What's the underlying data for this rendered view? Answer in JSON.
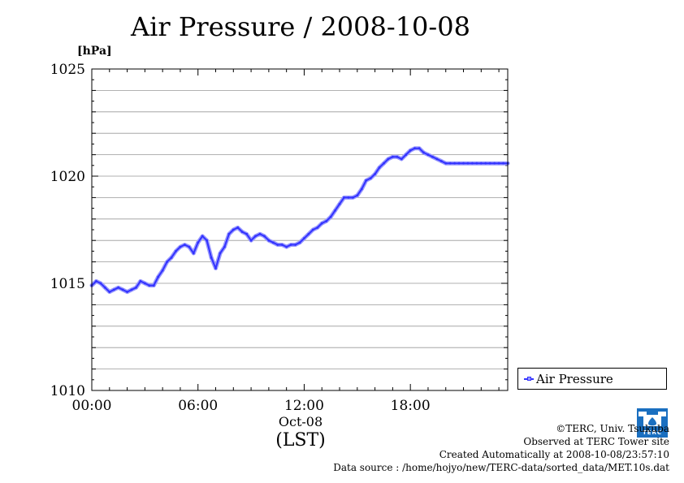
{
  "chart_data": {
    "type": "line",
    "title": "Air Pressure / 2008-10-08",
    "ylabel": "[hPa]",
    "ylim": [
      1010,
      1025
    ],
    "y_ticks": [
      1010,
      1015,
      1020,
      1025
    ],
    "y_tick_labels": [
      "1010",
      "1015",
      "1020",
      "1025"
    ],
    "x_ticks": [
      0,
      6,
      12,
      18
    ],
    "x_tick_labels": [
      "00:00",
      "06:00",
      "12:00",
      "18:00"
    ],
    "xlim": [
      0,
      23.5
    ],
    "date_label": "Oct-08",
    "xlabel": "(LST)",
    "grid": true,
    "legend_position": "bottom-right",
    "series": [
      {
        "name": "Air Pressure",
        "color": "#3333ff",
        "x": [
          0,
          0.25,
          0.5,
          0.75,
          1.0,
          1.25,
          1.5,
          1.75,
          2.0,
          2.25,
          2.5,
          2.75,
          3.0,
          3.25,
          3.5,
          3.75,
          4.0,
          4.25,
          4.5,
          4.75,
          5.0,
          5.25,
          5.5,
          5.75,
          6.0,
          6.25,
          6.5,
          6.75,
          7.0,
          7.25,
          7.5,
          7.75,
          8.0,
          8.25,
          8.5,
          8.75,
          9.0,
          9.25,
          9.5,
          9.75,
          10.0,
          10.25,
          10.5,
          10.75,
          11.0,
          11.25,
          11.5,
          11.75,
          12.0,
          12.25,
          12.5,
          12.75,
          13.0,
          13.25,
          13.5,
          13.75,
          14.0,
          14.25,
          14.5,
          14.75,
          15.0,
          15.25,
          15.5,
          15.75,
          16.0,
          16.25,
          16.5,
          16.75,
          17.0,
          17.25,
          17.5,
          17.75,
          18.0,
          18.25,
          18.5,
          18.75,
          19.0,
          19.25,
          19.5,
          19.75,
          20.0,
          20.25,
          20.5,
          20.75,
          21.0,
          21.25,
          21.5,
          21.75,
          22.0,
          22.25,
          22.5,
          22.75,
          23.0,
          23.25,
          23.5
        ],
        "values": [
          1014.9,
          1015.1,
          1015.0,
          1014.8,
          1014.6,
          1014.7,
          1014.8,
          1014.7,
          1014.6,
          1014.7,
          1014.8,
          1015.1,
          1015.0,
          1014.9,
          1014.9,
          1015.3,
          1015.6,
          1016.0,
          1016.2,
          1016.5,
          1016.7,
          1016.8,
          1016.7,
          1016.4,
          1016.9,
          1017.2,
          1017.0,
          1016.2,
          1015.7,
          1016.4,
          1016.7,
          1017.3,
          1017.5,
          1017.6,
          1017.4,
          1017.3,
          1017.0,
          1017.2,
          1017.3,
          1017.2,
          1017.0,
          1016.9,
          1016.8,
          1016.8,
          1016.7,
          1016.8,
          1016.8,
          1016.9,
          1017.1,
          1017.3,
          1017.5,
          1017.6,
          1017.8,
          1017.9,
          1018.1,
          1018.4,
          1018.7,
          1019.0,
          1019.0,
          1019.0,
          1019.1,
          1019.4,
          1019.8,
          1019.9,
          1020.1,
          1020.4,
          1020.6,
          1020.8,
          1020.9,
          1020.9,
          1020.8,
          1021.0,
          1021.2,
          1021.3,
          1021.3,
          1021.1,
          1021.0,
          1020.9,
          1020.8,
          1020.7,
          1020.6,
          1020.6,
          1020.6,
          1020.6,
          1020.6,
          1020.6,
          1020.6,
          1020.6,
          1020.6,
          1020.6,
          1020.6,
          1020.6,
          1020.6,
          1020.6,
          1020.6
        ]
      }
    ]
  },
  "legend": {
    "label": "Air Pressure"
  },
  "credits": {
    "copyright": "©TERC, Univ. Tsukuba",
    "observed": "Observed at TERC Tower site",
    "created": "Created Automatically at 2008-10-08/23:57:10",
    "source": "Data source : /home/hojyo/new/TERC-data/sorted_data/MET.10s.dat"
  },
  "logo": {
    "text": "TERC",
    "color": "#1a6fc0"
  }
}
